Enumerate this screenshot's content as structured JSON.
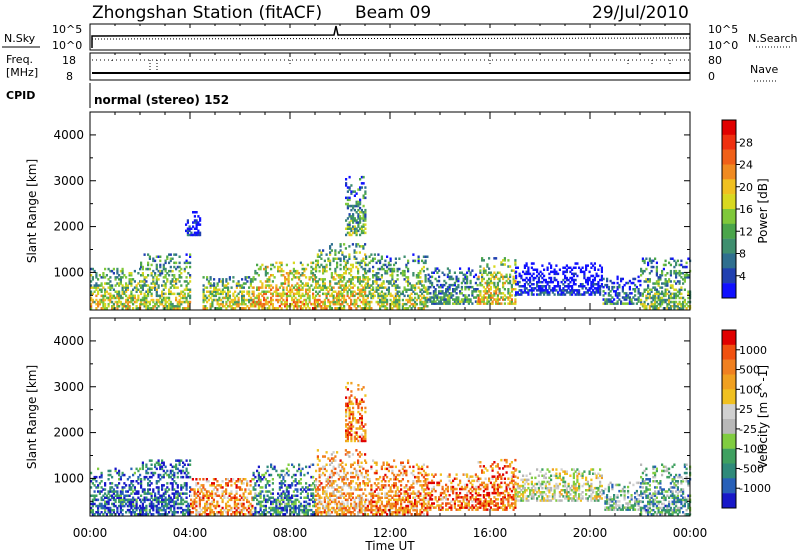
{
  "header": {
    "station": "Zhongshan Station (fitACF)",
    "beam": "Beam 09",
    "date": "29/Jul/2010"
  },
  "summary_panels": {
    "nsky": {
      "label": "N.Sky",
      "ticks_left": [
        "10^5",
        "10^0"
      ],
      "ticks_right": [
        "10^5",
        "10^0"
      ],
      "right_label": "N.Search"
    },
    "freq": {
      "label_lines": [
        "Freq.",
        "[MHz]"
      ],
      "ticks_left": [
        "18",
        "8"
      ],
      "ticks_right": [
        "80",
        "0"
      ],
      "right_label": "Nave"
    },
    "cpid": {
      "label": "CPID",
      "text": "normal (stereo) 152"
    }
  },
  "time_axis": {
    "ticks": [
      "00:00",
      "04:00",
      "08:00",
      "12:00",
      "16:00",
      "20:00",
      "00:00"
    ],
    "title": "Time UT"
  },
  "chart_data": [
    {
      "type": "heatmap",
      "title": "Power",
      "ylabel": "Slant Range [km]",
      "xlabel": "Time UT",
      "x_range_hours": [
        0,
        24
      ],
      "ylim": [
        180,
        4500
      ],
      "yticks": [
        1000,
        2000,
        3000,
        4000
      ],
      "colorbar": {
        "label": "Power [dB]",
        "ticks": [
          "28",
          "24",
          "20",
          "16",
          "12",
          "8",
          "4"
        ],
        "colors": [
          "#1010ff",
          "#2040b0",
          "#2f6f8f",
          "#3f8f6f",
          "#4aa54a",
          "#7fc83a",
          "#d8d820",
          "#f0c020",
          "#f08a20",
          "#f06018",
          "#ef3010",
          "#e00000"
        ]
      },
      "intervals": [
        {
          "t0": 0.0,
          "t1": 2.0,
          "r0": 200,
          "r1": 1100,
          "level": 0.55
        },
        {
          "t0": 2.0,
          "t1": 4.0,
          "r0": 200,
          "r1": 1400,
          "level": 0.5
        },
        {
          "t0": 3.8,
          "t1": 4.4,
          "r0": 1800,
          "r1": 2300,
          "level": 0.1
        },
        {
          "t0": 4.5,
          "t1": 6.5,
          "r0": 200,
          "r1": 900,
          "level": 0.55
        },
        {
          "t0": 6.5,
          "t1": 9.0,
          "r0": 200,
          "r1": 1200,
          "level": 0.7
        },
        {
          "t0": 9.0,
          "t1": 11.0,
          "r0": 200,
          "r1": 1600,
          "level": 0.6
        },
        {
          "t0": 10.2,
          "t1": 11.0,
          "r0": 1800,
          "r1": 3100,
          "level": 0.4
        },
        {
          "t0": 11.0,
          "t1": 13.5,
          "r0": 200,
          "r1": 1400,
          "level": 0.5
        },
        {
          "t0": 13.5,
          "t1": 15.5,
          "r0": 300,
          "r1": 1100,
          "level": 0.35
        },
        {
          "t0": 15.5,
          "t1": 17.0,
          "r0": 300,
          "r1": 1300,
          "level": 0.6
        },
        {
          "t0": 17.0,
          "t1": 20.5,
          "r0": 500,
          "r1": 1200,
          "level": 0.08
        },
        {
          "t0": 20.5,
          "t1": 22.0,
          "r0": 300,
          "r1": 900,
          "level": 0.3
        },
        {
          "t0": 22.0,
          "t1": 24.0,
          "r0": 200,
          "r1": 1300,
          "level": 0.45
        }
      ]
    },
    {
      "type": "heatmap",
      "title": "Velocity",
      "ylabel": "Slant Range [km]",
      "xlabel": "Time UT",
      "x_range_hours": [
        0,
        24
      ],
      "ylim": [
        180,
        4500
      ],
      "yticks": [
        1000,
        2000,
        3000,
        4000
      ],
      "colorbar": {
        "label": "Velocity [m s^-1]",
        "ticks": [
          "1000",
          "500",
          "100",
          "25",
          "-25",
          "-100",
          "-500",
          "-1000"
        ],
        "colors": [
          "#1818c8",
          "#2860b8",
          "#2f8a7a",
          "#3fa060",
          "#80cc40",
          "#b8b8b8",
          "#d0d0d0",
          "#f0c020",
          "#f0a020",
          "#f08020",
          "#f05010",
          "#e00000"
        ]
      },
      "intervals": [
        {
          "t0": 0.0,
          "t1": 2.0,
          "r0": 200,
          "r1": 1200,
          "level": 0.15
        },
        {
          "t0": 2.0,
          "t1": 4.0,
          "r0": 200,
          "r1": 1400,
          "level": 0.12
        },
        {
          "t0": 4.0,
          "t1": 6.5,
          "r0": 200,
          "r1": 1000,
          "level": 0.75
        },
        {
          "t0": 6.5,
          "t1": 9.0,
          "r0": 200,
          "r1": 1300,
          "level": 0.2
        },
        {
          "t0": 9.0,
          "t1": 11.0,
          "r0": 200,
          "r1": 1600,
          "level": 0.7
        },
        {
          "t0": 10.2,
          "t1": 11.0,
          "r0": 1800,
          "r1": 3100,
          "level": 0.8
        },
        {
          "t0": 11.0,
          "t1": 13.5,
          "r0": 200,
          "r1": 1400,
          "level": 0.75
        },
        {
          "t0": 13.5,
          "t1": 15.5,
          "r0": 300,
          "r1": 1100,
          "level": 0.78
        },
        {
          "t0": 15.5,
          "t1": 17.0,
          "r0": 300,
          "r1": 1400,
          "level": 0.8
        },
        {
          "t0": 17.0,
          "t1": 20.5,
          "r0": 500,
          "r1": 1200,
          "level": 0.5
        },
        {
          "t0": 20.5,
          "t1": 22.0,
          "r0": 300,
          "r1": 900,
          "level": 0.35
        },
        {
          "t0": 22.0,
          "t1": 24.0,
          "r0": 200,
          "r1": 1300,
          "level": 0.3
        }
      ]
    }
  ]
}
